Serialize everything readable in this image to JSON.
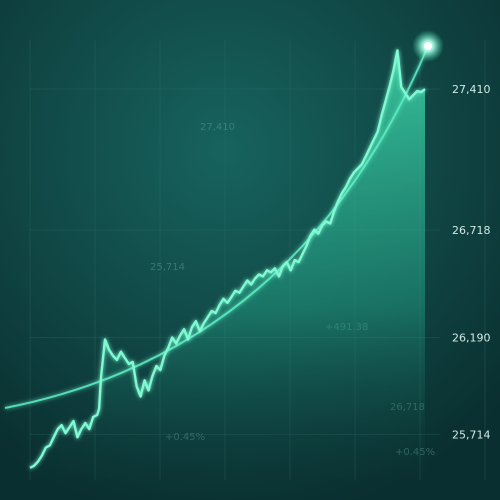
{
  "chart_data": {
    "type": "area",
    "title": "",
    "xlabel": "",
    "ylabel": "",
    "ylim": [
      25500,
      27700
    ],
    "y_ticks": [
      "27,410",
      "26,718",
      "26,190",
      "25,714"
    ],
    "y_tick_values": [
      27410,
      26718,
      26190,
      25714
    ],
    "grid": true,
    "x": [
      0,
      1,
      2,
      3,
      4,
      5,
      6,
      7,
      8,
      9,
      10,
      11,
      12,
      13,
      14,
      15,
      16,
      17,
      17.5,
      18,
      19,
      20,
      21,
      22,
      23,
      24,
      25,
      26,
      27,
      28,
      29,
      30,
      31,
      32,
      33,
      34,
      35,
      36,
      37,
      38,
      39,
      40,
      41,
      42,
      43,
      44,
      45,
      46,
      47,
      48,
      49,
      50,
      51,
      52,
      53,
      54,
      55,
      56,
      57,
      58,
      59,
      60,
      61,
      62,
      63,
      64,
      65,
      66,
      67,
      68,
      69,
      70,
      71,
      72,
      73,
      74,
      75,
      76,
      77,
      78,
      79,
      80,
      81,
      82,
      83,
      84,
      85,
      86,
      87,
      88,
      89,
      90,
      91,
      92,
      93,
      94,
      95,
      96,
      97,
      98,
      99,
      100
    ],
    "series": [
      {
        "values": [
          25550,
          25560,
          25580,
          25610,
          25650,
          25660,
          25700,
          25740,
          25760,
          25720,
          25750,
          25780,
          25700,
          25740,
          25770,
          25740,
          25800,
          25810,
          25840,
          26000,
          26180,
          26130,
          26100,
          26080,
          26120,
          26090,
          26060,
          26070,
          25950,
          25900,
          25980,
          25930,
          26000,
          26050,
          26030,
          26100,
          26140,
          26190,
          26160,
          26200,
          26230,
          26180,
          26240,
          26270,
          26220,
          26260,
          26290,
          26320,
          26310,
          26350,
          26380,
          26360,
          26390,
          26420,
          26410,
          26440,
          26470,
          26450,
          26480,
          26500,
          26490,
          26520,
          26510,
          26530,
          26490,
          26540,
          26560,
          26520,
          26570,
          26560,
          26600,
          26640,
          26690,
          26720,
          26700,
          26740,
          26760,
          26750,
          26810,
          26860,
          26900,
          26930,
          26970,
          27000,
          27020,
          27040,
          27080,
          27120,
          27160,
          27200,
          27280,
          27350,
          27420,
          27500,
          27600,
          27420,
          27390,
          27360,
          27380,
          27400,
          27395,
          27410
        ]
      }
    ],
    "trend": {
      "x": [
        0,
        100
      ],
      "values": [
        25820,
        27820
      ]
    },
    "colors": {
      "background": "#0d3b3a",
      "line": "#5ef0c4",
      "area_top": "#3fd8aa",
      "area_bottom": "#0d3b3a",
      "grid": "#2f6b63",
      "glow": "#aaffe6"
    }
  },
  "ghost_labels": [
    "27,410",
    "+491.38",
    "+0.45%",
    "26,718",
    "+0.45%",
    "25,714"
  ]
}
